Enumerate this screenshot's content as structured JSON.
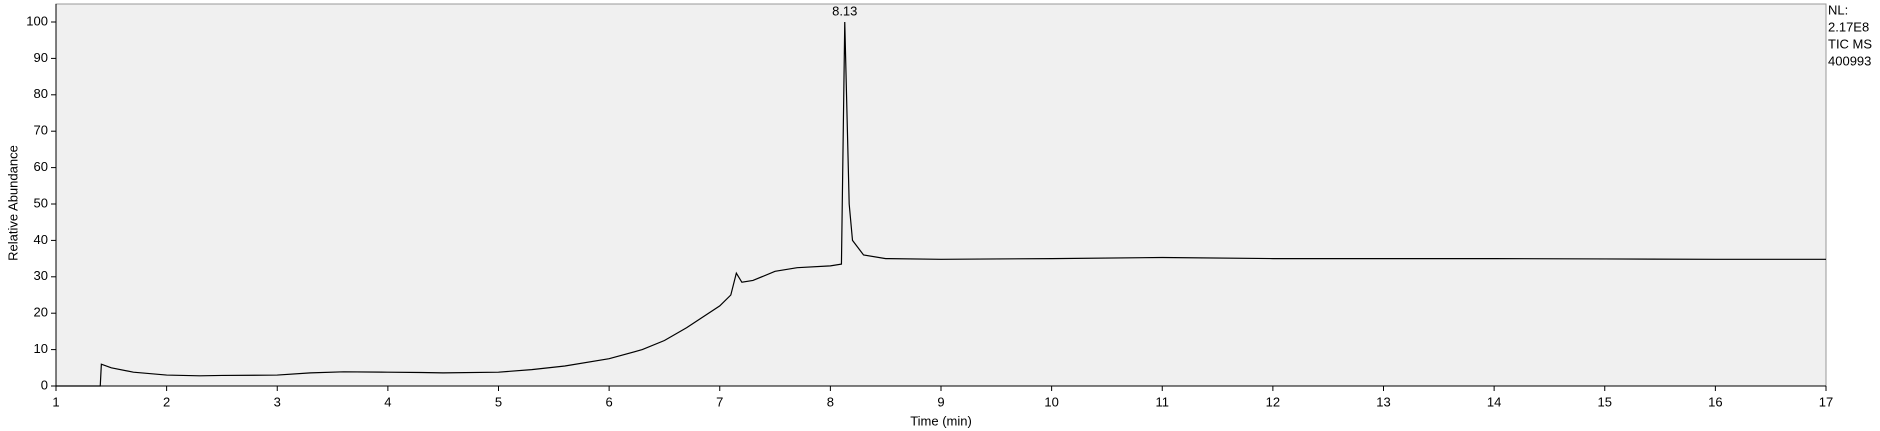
{
  "chart_data": {
    "type": "line",
    "x_label": "Time (min)",
    "y_label": "Relative Abundance",
    "info": [
      "NL:",
      "2.17E8",
      "TIC  MS",
      "400993"
    ],
    "annotations": [
      {
        "x": 8.13,
        "y": 100
      }
    ],
    "x": [
      1.0,
      1.4,
      1.41,
      1.5,
      1.7,
      2.0,
      2.3,
      2.5,
      3.0,
      3.3,
      3.6,
      4.0,
      4.3,
      4.5,
      5.0,
      5.3,
      5.6,
      6.0,
      6.3,
      6.5,
      6.7,
      7.0,
      7.1,
      7.15,
      7.2,
      7.3,
      7.5,
      7.7,
      8.0,
      8.1,
      8.13,
      8.17,
      8.2,
      8.3,
      8.5,
      9.0,
      10.0,
      11.0,
      12.0,
      13.0,
      14.0,
      15.0,
      16.0,
      17.0
    ],
    "values": [
      0,
      0,
      6,
      5,
      3.8,
      3,
      2.8,
      2.9,
      3.0,
      3.6,
      3.9,
      3.8,
      3.7,
      3.6,
      3.8,
      4.5,
      5.5,
      7.5,
      10,
      12.5,
      16,
      22,
      25,
      31,
      28.5,
      29,
      31.5,
      32.5,
      33,
      33.5,
      100,
      50,
      40,
      36,
      35,
      34.8,
      35,
      35.3,
      35,
      35,
      35,
      34.9,
      34.8,
      34.8
    ],
    "color": "#000000",
    "xlim": [
      1,
      17
    ],
    "xticks": [
      1,
      2,
      3,
      4,
      5,
      6,
      7,
      8,
      9,
      10,
      11,
      12,
      13,
      14,
      15,
      16,
      17
    ],
    "ylim": [
      0,
      100
    ],
    "yticks": [
      0,
      10,
      20,
      30,
      40,
      50,
      60,
      70,
      80,
      90,
      100
    ]
  }
}
